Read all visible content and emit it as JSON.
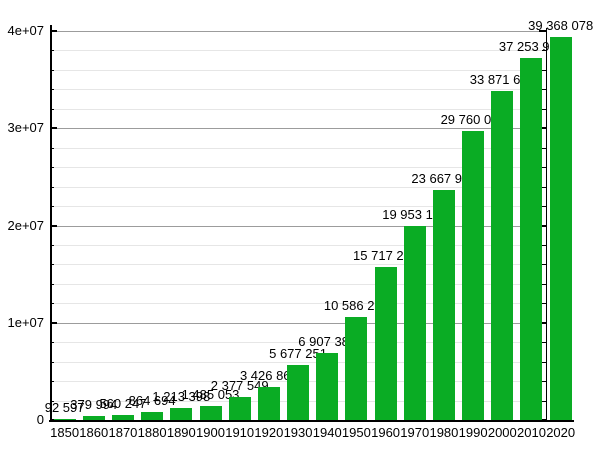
{
  "chart_data": {
    "type": "bar",
    "title": "",
    "xlabel": "",
    "ylabel": "",
    "categories": [
      "1850",
      "1860",
      "1870",
      "1880",
      "1890",
      "1900",
      "1910",
      "1920",
      "1930",
      "1940",
      "1950",
      "1960",
      "1970",
      "1980",
      "1990",
      "2000",
      "2010",
      "2020"
    ],
    "values": [
      92597,
      379994,
      560247,
      864694,
      1213398,
      1485053,
      2377549,
      3426861,
      5677251,
      6907387,
      10586223,
      15717204,
      19953134,
      23667902,
      29760021,
      33871648,
      37253956,
      39368078
    ],
    "value_labels": [
      "92 597",
      "379 994",
      "560 247",
      "864 694",
      "1 213 398",
      "1 485 053",
      "2 377 549",
      "3 426 861",
      "5 677 251",
      "6 907 387",
      "10 586 223",
      "15 717 204",
      "19 953 134",
      "23 667 902",
      "29 760 021",
      "33 871 648",
      "37 253 956",
      "39 368 078"
    ],
    "ylim": [
      0,
      40000000
    ],
    "ytick_values": [
      0,
      10000000,
      20000000,
      30000000,
      40000000
    ],
    "ytick_labels": [
      "0",
      "1e+07",
      "2e+07",
      "3e+07",
      "4e+07"
    ],
    "minor_ytick_step": 2000000,
    "grid": "major and minor horizontal gridlines",
    "legend_position": "none",
    "bar_color": "#0aac24",
    "major_grid_color": "#9c9c9c",
    "minor_grid_color": "#e6e6e6",
    "axis_color": "#000000",
    "background_color": "#ffffff"
  }
}
